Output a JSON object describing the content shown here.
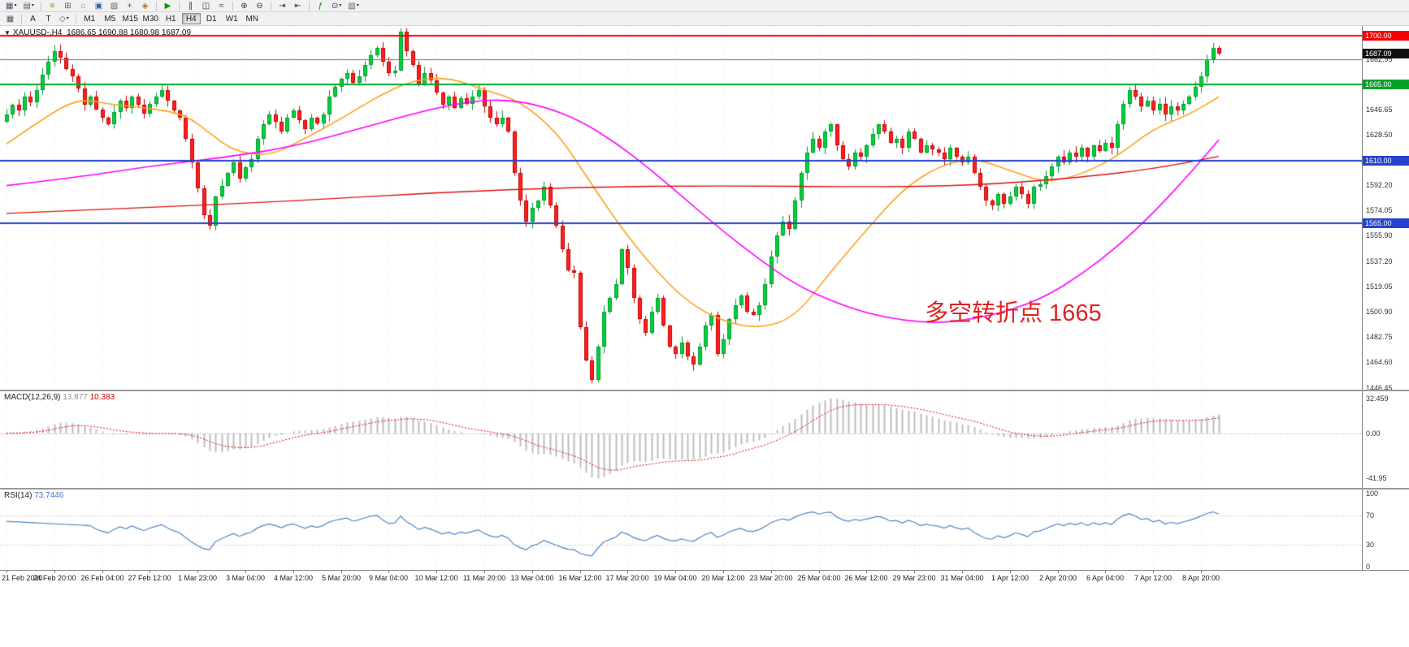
{
  "toolbar": {
    "row1": [
      {
        "name": "new-chart-icon",
        "glyph": "▦",
        "color": "#445566",
        "caret": true
      },
      {
        "name": "profiles-icon",
        "glyph": "▤",
        "color": "#556644",
        "caret": true
      },
      {
        "sep": true
      },
      {
        "name": "market-watch-icon",
        "glyph": "≡",
        "color": "#b87b00"
      },
      {
        "name": "data-window-icon",
        "glyph": "⊞",
        "color": "#3a7a3a"
      },
      {
        "name": "navigator-icon",
        "glyph": "⌂",
        "color": "#b8860b"
      },
      {
        "name": "terminal-icon",
        "glyph": "▣",
        "color": "#336699"
      },
      {
        "name": "strategy-tester-icon",
        "glyph": "▨",
        "color": "#666666"
      },
      {
        "name": "new-order-icon",
        "glyph": "+",
        "color": "#008800"
      },
      {
        "name": "metaeditor-icon",
        "glyph": "◈",
        "color": "#cc6600"
      },
      {
        "sep": true
      },
      {
        "name": "autotrading-icon",
        "glyph": "▶",
        "color": "#009900"
      },
      {
        "sep": true
      },
      {
        "name": "bar-chart-icon",
        "glyph": "∥",
        "color": "#333333"
      },
      {
        "name": "candlestick-chart-icon",
        "glyph": "◫",
        "color": "#333333"
      },
      {
        "name": "line-chart-icon",
        "glyph": "≈",
        "color": "#333333"
      },
      {
        "sep": true
      },
      {
        "name": "zoom-in-icon",
        "glyph": "⊕",
        "color": "#333333"
      },
      {
        "name": "zoom-out-icon",
        "glyph": "⊖",
        "color": "#333333"
      },
      {
        "sep": true
      },
      {
        "name": "auto-scroll-icon",
        "glyph": "⇥",
        "color": "#333333"
      },
      {
        "name": "chart-shift-icon",
        "glyph": "⇤",
        "color": "#333333"
      },
      {
        "sep": true
      },
      {
        "name": "indicators-icon",
        "glyph": "ƒ",
        "color": "#008800"
      },
      {
        "name": "periods-icon",
        "glyph": "⊙",
        "color": "#333333",
        "caret": true
      },
      {
        "name": "templates-icon",
        "glyph": "▧",
        "color": "#666666",
        "caret": true
      }
    ],
    "row2_tools": [
      {
        "name": "chart-grid-icon",
        "glyph": "▦",
        "color": "#555555"
      },
      {
        "sep": true
      },
      {
        "name": "text-tool-icon",
        "glyph": "A",
        "color": "#222222"
      },
      {
        "name": "text-label-tool-icon",
        "glyph": "T",
        "color": "#222222"
      },
      {
        "name": "draw-tool-icon",
        "glyph": "◇",
        "color": "#555555",
        "caret": true
      },
      {
        "sep": true
      }
    ],
    "timeframes": [
      "M1",
      "M5",
      "M15",
      "M30",
      "H1",
      "H4",
      "D1",
      "W1",
      "MN"
    ],
    "active_timeframe": "H4"
  },
  "chart": {
    "header": {
      "caret": "▼",
      "symbol": "XAUUSD-,H4",
      "open": "1686.65",
      "high": "1690.88",
      "low": "1680.98",
      "close": "1687.09"
    },
    "annotation": {
      "text": "多空转折点 1665",
      "color": "#e32020"
    },
    "current_price": {
      "value": "1687.09",
      "price": 1687.09,
      "tag_bg": "#111111"
    },
    "hlines": [
      {
        "price": 1700.0,
        "label": "1700.00",
        "color": "#ff0000",
        "tag_bg": "#f40000",
        "width": 2
      },
      {
        "price": 1682.95,
        "label": null,
        "color": "#707070",
        "tag_bg": null,
        "width": 1
      },
      {
        "price": 1665.0,
        "label": "1665.00",
        "color": "#00a82c",
        "tag_bg": "#00a02a",
        "width": 2
      },
      {
        "price": 1610.0,
        "label": "1610.00",
        "color": "#2543cc",
        "tag_bg": "#2543cc",
        "width": 2
      },
      {
        "price": 1565.0,
        "label": "1565.00",
        "color": "#2543cc",
        "tag_bg": "#2543cc",
        "width": 2
      }
    ],
    "y_ticks": [
      {
        "v": 1682.95,
        "label": "1682.95"
      },
      {
        "v": 1646.65,
        "label": "1646.65"
      },
      {
        "v": 1628.5,
        "label": "1628.50"
      },
      {
        "v": 1592.2,
        "label": "1592.20"
      },
      {
        "v": 1574.05,
        "label": "1574.05"
      },
      {
        "v": 1555.9,
        "label": "1555.90"
      },
      {
        "v": 1537.2,
        "label": "1537.20"
      },
      {
        "v": 1519.05,
        "label": "1519.05"
      },
      {
        "v": 1500.9,
        "label": "1500.90"
      },
      {
        "v": 1482.75,
        "label": "1482.75"
      },
      {
        "v": 1464.6,
        "label": "1464.60"
      },
      {
        "v": 1446.45,
        "label": "1446.45"
      }
    ],
    "colors": {
      "candle_up_fill": "#00d23c",
      "candle_up_border": "#009a2c",
      "candle_down_fill": "#ff2020",
      "candle_down_border": "#c40000",
      "ma_fast": "#ffa020",
      "ma_mid": "#ff00ff",
      "ma_slow": "#dd1111"
    }
  },
  "chart_data": {
    "type": "candlestick",
    "symbol": "XAUUSD",
    "timeframe": "H4",
    "y_range": [
      1445,
      1707
    ],
    "first_open": 1638,
    "closes": [
      1643,
      1650,
      1646,
      1656,
      1652,
      1661,
      1672,
      1681,
      1689,
      1684,
      1676,
      1671,
      1662,
      1650,
      1656,
      1647,
      1641,
      1636,
      1645,
      1653,
      1648,
      1656,
      1650,
      1644,
      1651,
      1656,
      1661,
      1653,
      1646,
      1641,
      1626,
      1609,
      1590,
      1571,
      1563,
      1584,
      1592,
      1601,
      1609,
      1597,
      1605,
      1611,
      1626,
      1636,
      1643,
      1638,
      1631,
      1641,
      1646,
      1639,
      1633,
      1641,
      1637,
      1643,
      1656,
      1663,
      1669,
      1673,
      1666,
      1671,
      1679,
      1686,
      1691,
      1681,
      1673,
      1675,
      1703,
      1689,
      1679,
      1665,
      1673,
      1668,
      1659,
      1650,
      1656,
      1648,
      1655,
      1651,
      1656,
      1661,
      1649,
      1641,
      1636,
      1641,
      1631,
      1601,
      1581,
      1566,
      1576,
      1581,
      1591,
      1578,
      1563,
      1546,
      1531,
      1529,
      1490,
      1466,
      1452,
      1476,
      1501,
      1511,
      1521,
      1546,
      1533,
      1511,
      1496,
      1486,
      1501,
      1511,
      1491,
      1476,
      1471,
      1479,
      1469,
      1463,
      1476,
      1491,
      1499,
      1471,
      1481,
      1496,
      1506,
      1513,
      1501,
      1499,
      1506,
      1521,
      1541,
      1556,
      1566,
      1561,
      1581,
      1601,
      1616,
      1626,
      1619,
      1631,
      1636,
      1621,
      1611,
      1606,
      1616,
      1613,
      1621,
      1629,
      1636,
      1631,
      1623,
      1626,
      1619,
      1631,
      1626,
      1616,
      1621,
      1618,
      1616,
      1611,
      1619,
      1613,
      1609,
      1613,
      1601,
      1591,
      1581,
      1578,
      1586,
      1579,
      1584,
      1591,
      1586,
      1579,
      1591,
      1593,
      1599,
      1606,
      1613,
      1609,
      1616,
      1613,
      1619,
      1613,
      1621,
      1617,
      1623,
      1619,
      1636,
      1651,
      1661,
      1656,
      1649,
      1653,
      1646,
      1651,
      1643,
      1649,
      1646,
      1651,
      1656,
      1663,
      1671,
      1683,
      1691,
      1687.09
    ],
    "overlays": [
      {
        "name": "ma-fast-orange",
        "anchors": [
          [
            0,
            1622
          ],
          [
            6,
            1640
          ],
          [
            12,
            1655
          ],
          [
            18,
            1650
          ],
          [
            24,
            1648
          ],
          [
            30,
            1643
          ],
          [
            34,
            1630
          ],
          [
            38,
            1617
          ],
          [
            44,
            1613
          ],
          [
            50,
            1626
          ],
          [
            56,
            1640
          ],
          [
            62,
            1656
          ],
          [
            68,
            1668
          ],
          [
            74,
            1670
          ],
          [
            80,
            1661
          ],
          [
            86,
            1653
          ],
          [
            92,
            1631
          ],
          [
            96,
            1606
          ],
          [
            102,
            1567
          ],
          [
            108,
            1534
          ],
          [
            114,
            1508
          ],
          [
            120,
            1494
          ],
          [
            126,
            1489
          ],
          [
            132,
            1497
          ],
          [
            138,
            1530
          ],
          [
            144,
            1560
          ],
          [
            150,
            1589
          ],
          [
            156,
            1606
          ],
          [
            162,
            1612
          ],
          [
            168,
            1603
          ],
          [
            174,
            1594
          ],
          [
            180,
            1600
          ],
          [
            186,
            1613
          ],
          [
            192,
            1633
          ],
          [
            198,
            1643
          ],
          [
            203,
            1656
          ]
        ]
      },
      {
        "name": "ma-mid-magenta",
        "anchors": [
          [
            0,
            1592
          ],
          [
            12,
            1598
          ],
          [
            24,
            1606
          ],
          [
            36,
            1612
          ],
          [
            48,
            1620
          ],
          [
            60,
            1634
          ],
          [
            70,
            1646
          ],
          [
            78,
            1653
          ],
          [
            84,
            1654
          ],
          [
            90,
            1649
          ],
          [
            96,
            1639
          ],
          [
            102,
            1623
          ],
          [
            108,
            1603
          ],
          [
            114,
            1581
          ],
          [
            120,
            1559
          ],
          [
            126,
            1539
          ],
          [
            132,
            1521
          ],
          [
            138,
            1509
          ],
          [
            144,
            1500
          ],
          [
            150,
            1495
          ],
          [
            156,
            1493
          ],
          [
            162,
            1496
          ],
          [
            168,
            1502
          ],
          [
            174,
            1512
          ],
          [
            180,
            1528
          ],
          [
            186,
            1548
          ],
          [
            192,
            1572
          ],
          [
            198,
            1600
          ],
          [
            203,
            1625
          ]
        ]
      },
      {
        "name": "ma-slow-red",
        "anchors": [
          [
            0,
            1572
          ],
          [
            24,
            1576
          ],
          [
            48,
            1581
          ],
          [
            72,
            1587
          ],
          [
            96,
            1591
          ],
          [
            120,
            1592
          ],
          [
            144,
            1591
          ],
          [
            162,
            1592
          ],
          [
            180,
            1598
          ],
          [
            192,
            1604
          ],
          [
            203,
            1613
          ]
        ]
      }
    ],
    "x_labels": [
      "21 Feb 2020",
      "24 Feb 20:00",
      "26 Feb 04:00",
      "27 Feb 12:00",
      "1 Mar 23:00",
      "3 Mar 04:00",
      "4 Mar 12:00",
      "5 Mar 20:00",
      "9 Mar 04:00",
      "10 Mar 12:00",
      "11 Mar 20:00",
      "13 Mar 04:00",
      "16 Mar 12:00",
      "17 Mar 20:00",
      "19 Mar 04:00",
      "20 Mar 12:00",
      "23 Mar 20:00",
      "25 Mar 04:00",
      "26 Mar 12:00",
      "29 Mar 23:00",
      "31 Mar 04:00",
      "1 Apr 12:00",
      "2 Apr 20:00",
      "6 Apr 04:00",
      "7 Apr 12:00",
      "8 Apr 20:00"
    ],
    "x_label_step": 8
  },
  "macd": {
    "title": "MACD(12,26,9)",
    "main_value": "13.877",
    "signal_value": "10.383",
    "params": {
      "fast": 12,
      "slow": 26,
      "signal": 9
    },
    "axis_ticks": [
      {
        "v": 32.459,
        "label": "32.459"
      },
      {
        "v": 0,
        "label": "0.00"
      },
      {
        "v": -41.95,
        "label": "-41.95"
      }
    ],
    "range": [
      -47,
      36
    ],
    "histogram_color": "#bdbdbd",
    "signal_color": "#e00000"
  },
  "rsi": {
    "title": "RSI(14)",
    "value": "73.7446",
    "period": 14,
    "axis_ticks": [
      {
        "v": 100,
        "label": "100"
      },
      {
        "v": 70,
        "label": "70"
      },
      {
        "v": 30,
        "label": "30"
      },
      {
        "v": 0,
        "label": "0"
      }
    ],
    "levels": [
      70,
      30
    ],
    "line_color": "#4f86c6"
  }
}
